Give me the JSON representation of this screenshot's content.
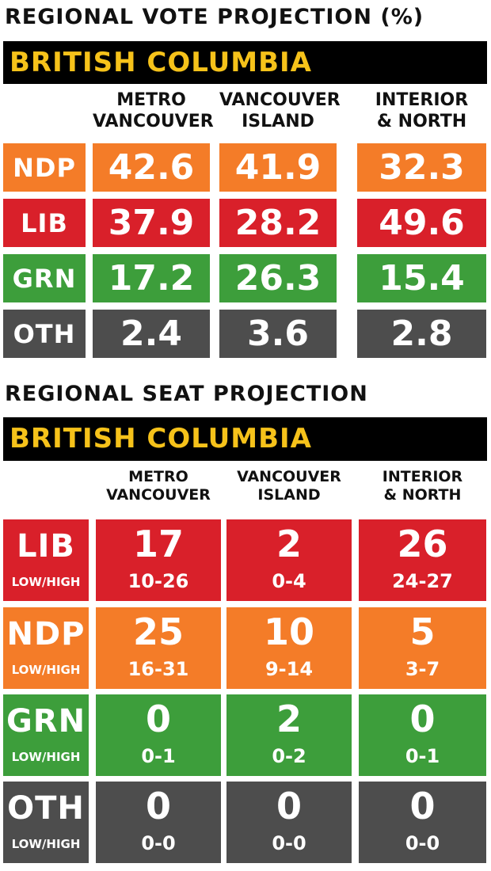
{
  "vote": {
    "title": "REGIONAL VOTE PROJECTION (%)",
    "province": "BRITISH COLUMBIA",
    "columns": [
      [
        "METRO",
        "VANCOUVER"
      ],
      [
        "VANCOUVER",
        "ISLAND"
      ],
      [
        "INTERIOR",
        "& NORTH"
      ]
    ],
    "rows": [
      {
        "party": "NDP",
        "color": "#f47c28",
        "values": [
          "42.6",
          "41.9",
          "32.3"
        ]
      },
      {
        "party": "LIB",
        "color": "#d9202a",
        "values": [
          "37.9",
          "28.2",
          "49.6"
        ]
      },
      {
        "party": "GRN",
        "color": "#3d9e3b",
        "values": [
          "17.2",
          "26.3",
          "15.4"
        ]
      },
      {
        "party": "OTH",
        "color": "#4d4d4d",
        "values": [
          "2.4",
          "3.6",
          "2.8"
        ]
      }
    ]
  },
  "seat": {
    "title": "REGIONAL SEAT PROJECTION",
    "province": "BRITISH COLUMBIA",
    "low_high_label": "LOW/HIGH",
    "columns": [
      [
        "METRO",
        "VANCOUVER"
      ],
      [
        "VANCOUVER",
        "ISLAND"
      ],
      [
        "INTERIOR",
        "& NORTH"
      ]
    ],
    "rows": [
      {
        "party": "LIB",
        "color": "#d9202a",
        "seats": [
          "17",
          "2",
          "26"
        ],
        "ranges": [
          "10-26",
          "0-4",
          "24-27"
        ]
      },
      {
        "party": "NDP",
        "color": "#f47c28",
        "seats": [
          "25",
          "10",
          "5"
        ],
        "ranges": [
          "16-31",
          "9-14",
          "3-7"
        ]
      },
      {
        "party": "GRN",
        "color": "#3d9e3b",
        "seats": [
          "0",
          "2",
          "0"
        ],
        "ranges": [
          "0-1",
          "0-2",
          "0-1"
        ]
      },
      {
        "party": "OTH",
        "color": "#4d4d4d",
        "seats": [
          "0",
          "0",
          "0"
        ],
        "ranges": [
          "0-0",
          "0-0",
          "0-0"
        ]
      }
    ]
  },
  "chart_data": [
    {
      "type": "table",
      "title": "REGIONAL VOTE PROJECTION (%)",
      "subtitle": "BRITISH COLUMBIA",
      "columns": [
        "METRO VANCOUVER",
        "VANCOUVER ISLAND",
        "INTERIOR & NORTH"
      ],
      "rows": [
        "NDP",
        "LIB",
        "GRN",
        "OTH"
      ],
      "values": [
        [
          42.6,
          41.9,
          32.3
        ],
        [
          37.9,
          28.2,
          49.6
        ],
        [
          17.2,
          26.3,
          15.4
        ],
        [
          2.4,
          3.6,
          2.8
        ]
      ]
    },
    {
      "type": "table",
      "title": "REGIONAL SEAT PROJECTION",
      "subtitle": "BRITISH COLUMBIA",
      "columns": [
        "METRO VANCOUVER",
        "VANCOUVER ISLAND",
        "INTERIOR & NORTH"
      ],
      "rows": [
        "LIB",
        "NDP",
        "GRN",
        "OTH"
      ],
      "values": [
        [
          17,
          2,
          26
        ],
        [
          25,
          10,
          5
        ],
        [
          0,
          2,
          0
        ],
        [
          0,
          0,
          0
        ]
      ],
      "low": [
        [
          10,
          0,
          24
        ],
        [
          16,
          9,
          3
        ],
        [
          0,
          0,
          0
        ],
        [
          0,
          0,
          0
        ]
      ],
      "high": [
        [
          26,
          4,
          27
        ],
        [
          31,
          14,
          7
        ],
        [
          1,
          2,
          1
        ],
        [
          0,
          0,
          0
        ]
      ]
    }
  ]
}
